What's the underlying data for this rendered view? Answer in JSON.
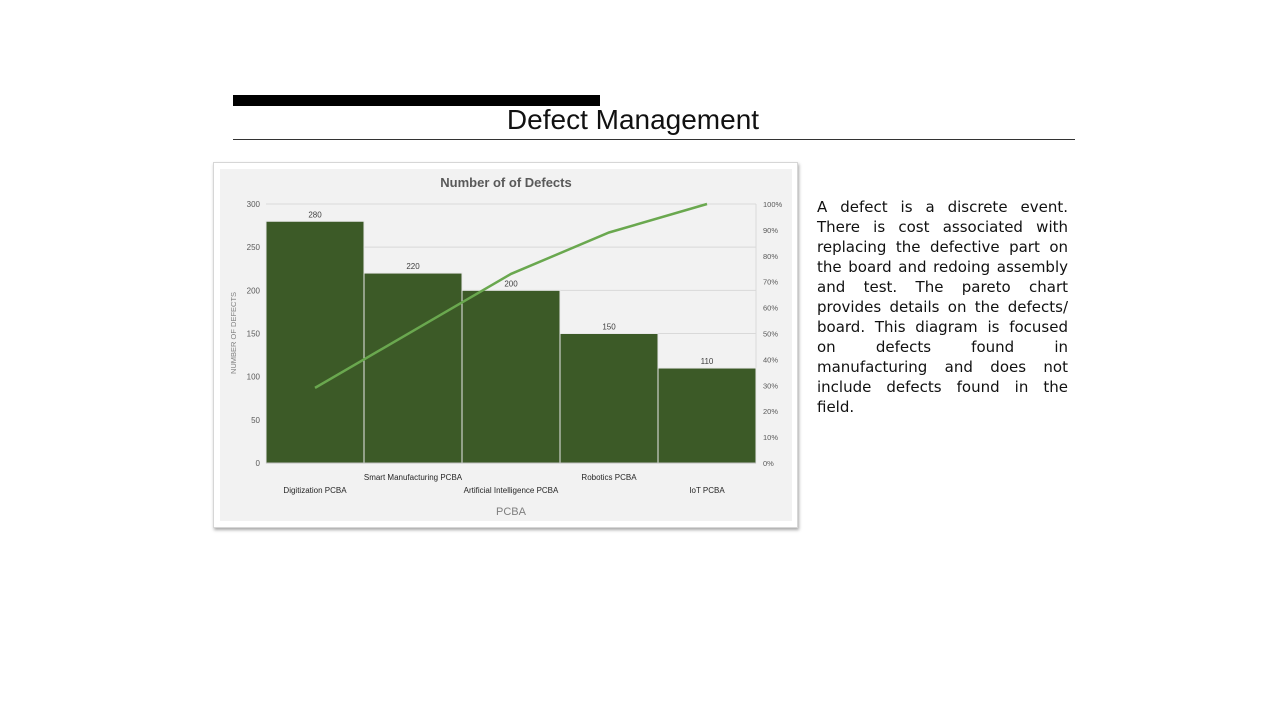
{
  "slide": {
    "title": "Defect Management",
    "description": "A defect is a discrete event. There is cost associated with replacing the defective part on the board and redoing assembly and test. The pareto chart provides details on the defects/ board. This diagram is focused on defects found in manufacturing and does not include defects found in the field."
  },
  "chart_data": {
    "type": "bar",
    "title": "Number of of Defects",
    "xlabel": "PCBA",
    "ylabel": "NUMBER OF DEFECTS",
    "categories": [
      "Digitization PCBA",
      "Smart Manufacturing PCBA",
      "Artificial Intelligence PCBA",
      "Robotics PCBA",
      "IoT PCBA"
    ],
    "series": [
      {
        "type": "bar",
        "values": [
          280,
          220,
          200,
          150,
          110
        ]
      },
      {
        "type": "line",
        "values": [
          29,
          51,
          73,
          89,
          100
        ]
      }
    ],
    "ylim": [
      0,
      300
    ],
    "y_ticks": [
      "0",
      "50",
      "100",
      "150",
      "200",
      "250",
      "300"
    ],
    "y2lim": [
      0,
      100
    ],
    "y2_ticks": [
      "0%",
      "10%",
      "20%",
      "30%",
      "40%",
      "50%",
      "60%",
      "70%",
      "80%",
      "90%",
      "100%"
    ],
    "grid": true,
    "legend": "none",
    "colors": {
      "bar": "#3c5a27",
      "line": "#6aa84f",
      "plot_bg": "#f2f2f2",
      "grid": "#d9d9d9"
    }
  }
}
